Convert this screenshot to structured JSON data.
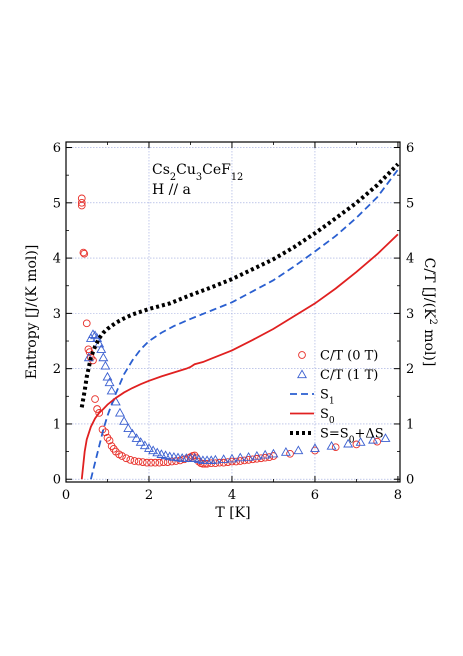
{
  "chart_data": {
    "type": "scatter",
    "annotation": {
      "formula": {
        "parts": [
          {
            "t": "Cs",
            "sub": "2"
          },
          {
            "t": "Cu",
            "sub": "3"
          },
          {
            "t": "CeF",
            "sub": "12"
          }
        ]
      },
      "field": "H // a"
    },
    "xlabel": "T [K]",
    "ylabel_left": "Entropy [J/(K mol)]",
    "ylabel_right": {
      "parts": [
        {
          "t": "C/T [J/(K"
        },
        {
          "t": "",
          "sup": "2"
        },
        {
          "t": " mol)]"
        }
      ]
    },
    "xlim": [
      0,
      8.05
    ],
    "ylim": [
      -0.05,
      6.1
    ],
    "xticks": [
      0,
      2,
      4,
      6,
      8
    ],
    "yticks": [
      0,
      1,
      2,
      3,
      4,
      5,
      6
    ],
    "grid": true,
    "legend_position": "right",
    "series": [
      {
        "name": "C/T (0 T)",
        "label": "C/T (0 T)",
        "kind": "markers",
        "marker": "circle",
        "color": "#e8302a",
        "x": [
          0.38,
          0.38,
          0.38,
          0.42,
          0.44,
          0.5,
          0.54,
          0.57,
          0.6,
          0.65,
          0.7,
          0.75,
          0.8,
          0.88,
          0.95,
          1.0,
          1.05,
          1.1,
          1.15,
          1.2,
          1.28,
          1.35,
          1.45,
          1.55,
          1.65,
          1.75,
          1.85,
          1.95,
          2.05,
          2.15,
          2.25,
          2.35,
          2.45,
          2.55,
          2.65,
          2.75,
          2.85,
          2.95,
          3.0,
          3.05,
          3.1,
          3.15,
          3.2,
          3.25,
          3.3,
          3.35,
          3.4,
          3.5,
          3.6,
          3.7,
          3.8,
          3.9,
          4.0,
          4.1,
          4.2,
          4.3,
          4.4,
          4.5,
          4.6,
          4.7,
          4.8,
          4.9,
          5.0,
          5.4,
          6.0,
          6.5,
          7.0,
          7.5
        ],
        "y": [
          5.08,
          5.0,
          4.95,
          4.1,
          4.08,
          2.82,
          2.35,
          2.3,
          2.2,
          2.15,
          1.45,
          1.27,
          1.2,
          0.9,
          0.85,
          0.75,
          0.7,
          0.6,
          0.55,
          0.5,
          0.45,
          0.42,
          0.38,
          0.35,
          0.33,
          0.32,
          0.31,
          0.3,
          0.3,
          0.3,
          0.3,
          0.31,
          0.31,
          0.32,
          0.33,
          0.34,
          0.36,
          0.38,
          0.4,
          0.42,
          0.43,
          0.38,
          0.32,
          0.29,
          0.28,
          0.28,
          0.28,
          0.29,
          0.29,
          0.3,
          0.3,
          0.31,
          0.32,
          0.32,
          0.33,
          0.34,
          0.35,
          0.36,
          0.37,
          0.38,
          0.39,
          0.4,
          0.42,
          0.46,
          0.52,
          0.58,
          0.63,
          0.68
        ]
      },
      {
        "name": "C/T (1 T)",
        "label": "C/T (1 T)",
        "kind": "markers",
        "marker": "triangle",
        "color": "#3a5fd0",
        "x": [
          0.55,
          0.6,
          0.65,
          0.7,
          0.75,
          0.8,
          0.85,
          0.9,
          0.95,
          1.0,
          1.05,
          1.1,
          1.2,
          1.3,
          1.4,
          1.5,
          1.6,
          1.7,
          1.8,
          1.9,
          2.0,
          2.1,
          2.2,
          2.3,
          2.4,
          2.5,
          2.6,
          2.7,
          2.8,
          2.9,
          3.0,
          3.1,
          3.2,
          3.3,
          3.4,
          3.5,
          3.6,
          3.8,
          4.0,
          4.2,
          4.4,
          4.6,
          4.8,
          5.0,
          5.3,
          5.6,
          6.0,
          6.4,
          6.8,
          7.1,
          7.4,
          7.7
        ],
        "y": [
          2.2,
          2.55,
          2.62,
          2.6,
          2.55,
          2.45,
          2.35,
          2.2,
          2.05,
          1.85,
          1.75,
          1.6,
          1.4,
          1.2,
          1.05,
          0.92,
          0.82,
          0.74,
          0.67,
          0.61,
          0.56,
          0.52,
          0.48,
          0.45,
          0.43,
          0.41,
          0.4,
          0.39,
          0.38,
          0.38,
          0.38,
          0.38,
          0.36,
          0.34,
          0.34,
          0.34,
          0.35,
          0.36,
          0.37,
          0.39,
          0.4,
          0.42,
          0.44,
          0.46,
          0.49,
          0.52,
          0.56,
          0.6,
          0.64,
          0.67,
          0.71,
          0.74
        ]
      },
      {
        "name": "S1",
        "label": {
          "parts": [
            {
              "t": "S",
              "sub": "1"
            }
          ]
        },
        "kind": "line",
        "dash": "dashed",
        "color": "#2a5fd0",
        "x": [
          0.6,
          0.7,
          0.8,
          0.9,
          1.0,
          1.2,
          1.4,
          1.6,
          1.8,
          2.0,
          2.3,
          2.6,
          3.0,
          3.5,
          4.0,
          4.5,
          5.0,
          5.5,
          6.0,
          6.5,
          7.0,
          7.5,
          8.0
        ],
        "y": [
          0.0,
          0.3,
          0.6,
          0.9,
          1.15,
          1.55,
          1.9,
          2.15,
          2.35,
          2.5,
          2.65,
          2.77,
          2.9,
          3.05,
          3.2,
          3.4,
          3.6,
          3.85,
          4.12,
          4.4,
          4.73,
          5.1,
          5.6
        ]
      },
      {
        "name": "S0",
        "label": {
          "parts": [
            {
              "t": "S",
              "sub": "0"
            }
          ]
        },
        "kind": "line",
        "dash": "solid",
        "color": "#e02020",
        "x": [
          0.38,
          0.45,
          0.5,
          0.6,
          0.7,
          0.8,
          0.9,
          1.0,
          1.2,
          1.4,
          1.6,
          1.8,
          2.0,
          2.3,
          2.6,
          2.9,
          3.0,
          3.1,
          3.2,
          3.3,
          3.5,
          4.0,
          4.5,
          5.0,
          5.5,
          6.0,
          6.5,
          7.0,
          7.5,
          8.0
        ],
        "y": [
          0.0,
          0.5,
          0.72,
          0.95,
          1.1,
          1.2,
          1.27,
          1.35,
          1.47,
          1.57,
          1.65,
          1.72,
          1.78,
          1.86,
          1.93,
          2.0,
          2.03,
          2.08,
          2.1,
          2.12,
          2.18,
          2.33,
          2.52,
          2.72,
          2.95,
          3.18,
          3.45,
          3.75,
          4.07,
          4.43
        ]
      },
      {
        "name": "S=S0+ΔS",
        "label": {
          "parts": [
            {
              "t": "S=S",
              "sub": "0"
            },
            {
              "t": "+ΔS"
            }
          ]
        },
        "kind": "line",
        "dash": "dotted",
        "color": "#000000",
        "x": [
          0.38,
          0.45,
          0.5,
          0.6,
          0.7,
          0.8,
          0.9,
          1.0,
          1.2,
          1.4,
          1.6,
          1.8,
          2.0,
          2.5,
          3.0,
          3.5,
          4.0,
          4.5,
          5.0,
          5.5,
          6.0,
          6.5,
          7.0,
          7.5,
          8.0
        ],
        "y": [
          1.3,
          1.6,
          1.85,
          2.2,
          2.4,
          2.55,
          2.65,
          2.72,
          2.83,
          2.91,
          2.98,
          3.03,
          3.08,
          3.18,
          3.33,
          3.47,
          3.62,
          3.8,
          3.98,
          4.2,
          4.45,
          4.72,
          5.0,
          5.32,
          5.7
        ]
      }
    ]
  }
}
